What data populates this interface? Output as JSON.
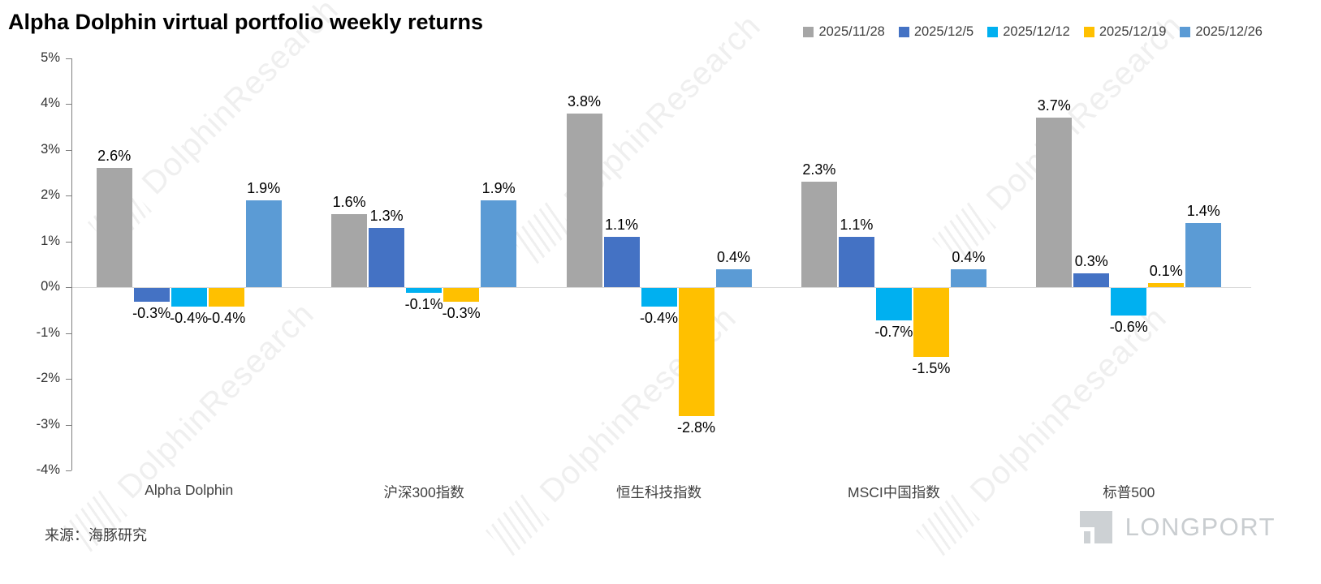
{
  "source_note": "来源：海豚研究",
  "watermark_text": "DolphinResearch",
  "logo_text": "LONGPORT",
  "chart_data": {
    "type": "bar",
    "title": "Alpha Dolphin virtual portfolio weekly returns",
    "categories": [
      "Alpha Dolphin",
      "沪深300指数",
      "恒生科技指数",
      "MSCI中国指数",
      "标普500"
    ],
    "series": [
      {
        "name": "2025/11/28",
        "color": "#A6A6A6",
        "values": [
          2.6,
          1.6,
          3.8,
          2.3,
          3.7
        ]
      },
      {
        "name": "2025/12/5",
        "color": "#4472C4",
        "values": [
          -0.3,
          1.3,
          1.1,
          1.1,
          0.3
        ]
      },
      {
        "name": "2025/12/12",
        "color": "#00B0F0",
        "values": [
          -0.4,
          -0.1,
          -0.4,
          -0.7,
          -0.6
        ]
      },
      {
        "name": "2025/12/19",
        "color": "#FFC000",
        "values": [
          -0.4,
          -0.3,
          -2.8,
          -1.5,
          0.1
        ]
      },
      {
        "name": "2025/12/26",
        "color": "#5B9BD5",
        "values": [
          1.9,
          1.9,
          0.4,
          0.4,
          1.4
        ]
      }
    ],
    "xlabel": "",
    "ylabel": "",
    "ylim": [
      -4,
      5
    ],
    "ytick_step": 1,
    "ytick_suffix": "%",
    "grid": false,
    "zero_line": true,
    "value_labels": true,
    "legend_position": "top-right"
  }
}
